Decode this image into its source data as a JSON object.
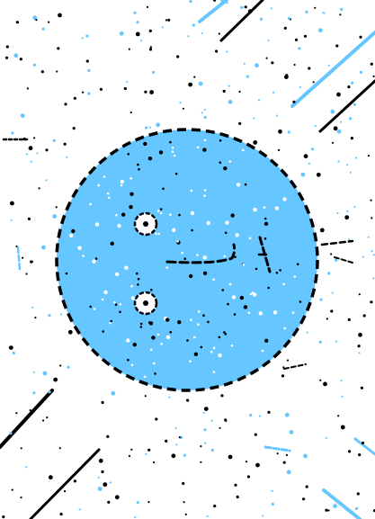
{
  "scene": {
    "background_color": "#ffffff",
    "planet_color": "#66c6ff",
    "ink_color": "#000000",
    "accent_color": "#66c6ff",
    "speck_color_white": "#ffffff"
  }
}
